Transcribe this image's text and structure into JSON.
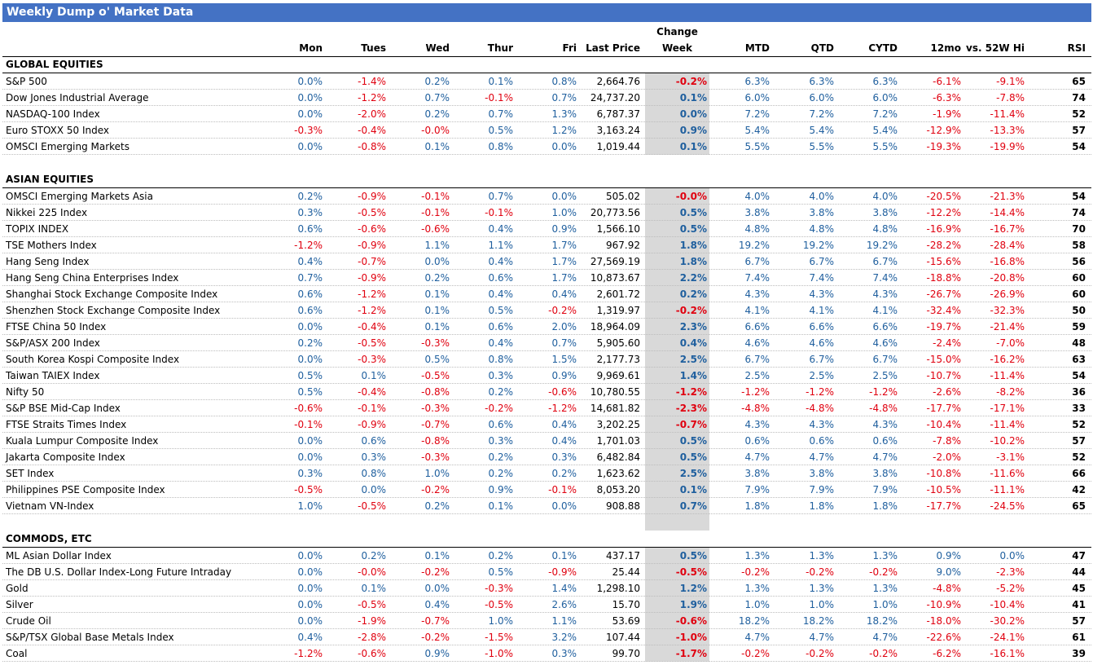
{
  "title": "Weekly Dump o' Market Data",
  "columns": {
    "change_top": "Change",
    "labels": [
      "Mon",
      "Tues",
      "Wed",
      "Thur",
      "Fri",
      "Last Price",
      "Week",
      "MTD",
      "QTD",
      "CYTD",
      "12mo",
      "vs. 52W Hi",
      "RSI"
    ]
  },
  "colors": {
    "header": "#4472c4",
    "positive": "#1f5f9e",
    "negative": "#e0000f",
    "week_bg": "#d9d9d9"
  },
  "sections": [
    {
      "name": "GLOBAL EQUITIES",
      "rows": [
        {
          "name": "S&P 500",
          "mon": "0.0%",
          "tue": "-1.4%",
          "wed": "0.2%",
          "thu": "0.1%",
          "fri": "0.8%",
          "last": "2,664.76",
          "week": "-0.2%",
          "mtd": "6.3%",
          "qtd": "6.3%",
          "cytd": "6.3%",
          "m12": "-6.1%",
          "hi": "-9.1%",
          "rsi": "65"
        },
        {
          "name": "Dow Jones Industrial Average",
          "mon": "0.0%",
          "tue": "-1.2%",
          "wed": "0.7%",
          "thu": "-0.1%",
          "fri": "0.7%",
          "last": "24,737.20",
          "week": "0.1%",
          "mtd": "6.0%",
          "qtd": "6.0%",
          "cytd": "6.0%",
          "m12": "-6.3%",
          "hi": "-7.8%",
          "rsi": "74"
        },
        {
          "name": "NASDAQ-100 Index",
          "mon": "0.0%",
          "tue": "-2.0%",
          "wed": "0.2%",
          "thu": "0.7%",
          "fri": "1.3%",
          "last": "6,787.37",
          "week": "0.0%",
          "mtd": "7.2%",
          "qtd": "7.2%",
          "cytd": "7.2%",
          "m12": "-1.9%",
          "hi": "-11.4%",
          "rsi": "52"
        },
        {
          "name": "Euro STOXX 50 Index",
          "mon": "-0.3%",
          "tue": "-0.4%",
          "wed": "-0.0%",
          "thu": "0.5%",
          "fri": "1.2%",
          "last": "3,163.24",
          "week": "0.9%",
          "mtd": "5.4%",
          "qtd": "5.4%",
          "cytd": "5.4%",
          "m12": "-12.9%",
          "hi": "-13.3%",
          "rsi": "57"
        },
        {
          "name": "OMSCI Emerging Markets",
          "mon": "0.0%",
          "tue": "-0.8%",
          "wed": "0.1%",
          "thu": "0.8%",
          "fri": "0.0%",
          "last": "1,019.44",
          "week": "0.1%",
          "mtd": "5.5%",
          "qtd": "5.5%",
          "cytd": "5.5%",
          "m12": "-19.3%",
          "hi": "-19.9%",
          "rsi": "54"
        }
      ]
    },
    {
      "name": "ASIAN EQUITIES",
      "rows": [
        {
          "name": "OMSCI Emerging Markets Asia",
          "mon": "0.2%",
          "tue": "-0.9%",
          "wed": "-0.1%",
          "thu": "0.7%",
          "fri": "0.0%",
          "last": "505.02",
          "week": "-0.0%",
          "mtd": "4.0%",
          "qtd": "4.0%",
          "cytd": "4.0%",
          "m12": "-20.5%",
          "hi": "-21.3%",
          "rsi": "54"
        },
        {
          "name": "Nikkei 225 Index",
          "mon": "0.3%",
          "tue": "-0.5%",
          "wed": "-0.1%",
          "thu": "-0.1%",
          "fri": "1.0%",
          "last": "20,773.56",
          "week": "0.5%",
          "mtd": "3.8%",
          "qtd": "3.8%",
          "cytd": "3.8%",
          "m12": "-12.2%",
          "hi": "-14.4%",
          "rsi": "74"
        },
        {
          "name": "TOPIX INDEX",
          "mon": "0.6%",
          "tue": "-0.6%",
          "wed": "-0.6%",
          "thu": "0.4%",
          "fri": "0.9%",
          "last": "1,566.10",
          "week": "0.5%",
          "mtd": "4.8%",
          "qtd": "4.8%",
          "cytd": "4.8%",
          "m12": "-16.9%",
          "hi": "-16.7%",
          "rsi": "70"
        },
        {
          "name": "TSE Mothers Index",
          "mon": "-1.2%",
          "tue": "-0.9%",
          "wed": "1.1%",
          "thu": "1.1%",
          "fri": "1.7%",
          "last": "967.92",
          "week": "1.8%",
          "mtd": "19.2%",
          "qtd": "19.2%",
          "cytd": "19.2%",
          "m12": "-28.2%",
          "hi": "-28.4%",
          "rsi": "58"
        },
        {
          "name": "Hang Seng Index",
          "mon": "0.4%",
          "tue": "-0.7%",
          "wed": "0.0%",
          "thu": "0.4%",
          "fri": "1.7%",
          "last": "27,569.19",
          "week": "1.8%",
          "mtd": "6.7%",
          "qtd": "6.7%",
          "cytd": "6.7%",
          "m12": "-15.6%",
          "hi": "-16.8%",
          "rsi": "56"
        },
        {
          "name": "Hang Seng China Enterprises Index",
          "mon": "0.7%",
          "tue": "-0.9%",
          "wed": "0.2%",
          "thu": "0.6%",
          "fri": "1.7%",
          "last": "10,873.67",
          "week": "2.2%",
          "mtd": "7.4%",
          "qtd": "7.4%",
          "cytd": "7.4%",
          "m12": "-18.8%",
          "hi": "-20.8%",
          "rsi": "60"
        },
        {
          "name": "Shanghai Stock Exchange Composite Index",
          "mon": "0.6%",
          "tue": "-1.2%",
          "wed": "0.1%",
          "thu": "0.4%",
          "fri": "0.4%",
          "last": "2,601.72",
          "week": "0.2%",
          "mtd": "4.3%",
          "qtd": "4.3%",
          "cytd": "4.3%",
          "m12": "-26.7%",
          "hi": "-26.9%",
          "rsi": "60"
        },
        {
          "name": "Shenzhen Stock Exchange Composite Index",
          "mon": "0.6%",
          "tue": "-1.2%",
          "wed": "0.1%",
          "thu": "0.5%",
          "fri": "-0.2%",
          "last": "1,319.97",
          "week": "-0.2%",
          "mtd": "4.1%",
          "qtd": "4.1%",
          "cytd": "4.1%",
          "m12": "-32.4%",
          "hi": "-32.3%",
          "rsi": "50"
        },
        {
          "name": "FTSE China 50 Index",
          "mon": "0.0%",
          "tue": "-0.4%",
          "wed": "0.1%",
          "thu": "0.6%",
          "fri": "2.0%",
          "last": "18,964.09",
          "week": "2.3%",
          "mtd": "6.6%",
          "qtd": "6.6%",
          "cytd": "6.6%",
          "m12": "-19.7%",
          "hi": "-21.4%",
          "rsi": "59"
        },
        {
          "name": "S&P/ASX 200 Index",
          "mon": "0.2%",
          "tue": "-0.5%",
          "wed": "-0.3%",
          "thu": "0.4%",
          "fri": "0.7%",
          "last": "5,905.60",
          "week": "0.4%",
          "mtd": "4.6%",
          "qtd": "4.6%",
          "cytd": "4.6%",
          "m12": "-2.4%",
          "hi": "-7.0%",
          "rsi": "48"
        },
        {
          "name": "South Korea Kospi Composite Index",
          "mon": "0.0%",
          "tue": "-0.3%",
          "wed": "0.5%",
          "thu": "0.8%",
          "fri": "1.5%",
          "last": "2,177.73",
          "week": "2.5%",
          "mtd": "6.7%",
          "qtd": "6.7%",
          "cytd": "6.7%",
          "m12": "-15.0%",
          "hi": "-16.2%",
          "rsi": "63"
        },
        {
          "name": "Taiwan TAIEX Index",
          "mon": "0.5%",
          "tue": "0.1%",
          "wed": "-0.5%",
          "thu": "0.3%",
          "fri": "0.9%",
          "last": "9,969.61",
          "week": "1.4%",
          "mtd": "2.5%",
          "qtd": "2.5%",
          "cytd": "2.5%",
          "m12": "-10.7%",
          "hi": "-11.4%",
          "rsi": "54"
        },
        {
          "name": "Nifty 50",
          "mon": "0.5%",
          "tue": "-0.4%",
          "wed": "-0.8%",
          "thu": "0.2%",
          "fri": "-0.6%",
          "last": "10,780.55",
          "week": "-1.2%",
          "mtd": "-1.2%",
          "qtd": "-1.2%",
          "cytd": "-1.2%",
          "m12": "-2.6%",
          "hi": "-8.2%",
          "rsi": "36"
        },
        {
          "name": "S&P BSE Mid-Cap Index",
          "mon": "-0.6%",
          "tue": "-0.1%",
          "wed": "-0.3%",
          "thu": "-0.2%",
          "fri": "-1.2%",
          "last": "14,681.82",
          "week": "-2.3%",
          "mtd": "-4.8%",
          "qtd": "-4.8%",
          "cytd": "-4.8%",
          "m12": "-17.7%",
          "hi": "-17.1%",
          "rsi": "33"
        },
        {
          "name": "FTSE Straits Times Index",
          "mon": "-0.1%",
          "tue": "-0.9%",
          "wed": "-0.7%",
          "thu": "0.6%",
          "fri": "0.4%",
          "last": "3,202.25",
          "week": "-0.7%",
          "mtd": "4.3%",
          "qtd": "4.3%",
          "cytd": "4.3%",
          "m12": "-10.4%",
          "hi": "-11.4%",
          "rsi": "52"
        },
        {
          "name": "Kuala Lumpur Composite Index",
          "mon": "0.0%",
          "tue": "0.6%",
          "wed": "-0.8%",
          "thu": "0.3%",
          "fri": "0.4%",
          "last": "1,701.03",
          "week": "0.5%",
          "mtd": "0.6%",
          "qtd": "0.6%",
          "cytd": "0.6%",
          "m12": "-7.8%",
          "hi": "-10.2%",
          "rsi": "57"
        },
        {
          "name": "Jakarta Composite Index",
          "mon": "0.0%",
          "tue": "0.3%",
          "wed": "-0.3%",
          "thu": "0.2%",
          "fri": "0.3%",
          "last": "6,482.84",
          "week": "0.5%",
          "mtd": "4.7%",
          "qtd": "4.7%",
          "cytd": "4.7%",
          "m12": "-2.0%",
          "hi": "-3.1%",
          "rsi": "52"
        },
        {
          "name": "SET Index",
          "mon": "0.3%",
          "tue": "0.8%",
          "wed": "1.0%",
          "thu": "0.2%",
          "fri": "0.2%",
          "last": "1,623.62",
          "week": "2.5%",
          "mtd": "3.8%",
          "qtd": "3.8%",
          "cytd": "3.8%",
          "m12": "-10.8%",
          "hi": "-11.6%",
          "rsi": "66"
        },
        {
          "name": "Philippines PSE Composite Index",
          "mon": "-0.5%",
          "tue": "0.0%",
          "wed": "-0.2%",
          "thu": "0.9%",
          "fri": "-0.1%",
          "last": "8,053.20",
          "week": "0.1%",
          "mtd": "7.9%",
          "qtd": "7.9%",
          "cytd": "7.9%",
          "m12": "-10.5%",
          "hi": "-11.1%",
          "rsi": "42"
        },
        {
          "name": "Vietnam VN-Index",
          "mon": "1.0%",
          "tue": "-0.5%",
          "wed": "0.2%",
          "thu": "0.1%",
          "fri": "0.0%",
          "last": "908.88",
          "week": "0.7%",
          "mtd": "1.8%",
          "qtd": "1.8%",
          "cytd": "1.8%",
          "m12": "-17.7%",
          "hi": "-24.5%",
          "rsi": "65"
        }
      ]
    },
    {
      "name": "COMMODS, ETC",
      "rows": [
        {
          "name": "ML Asian Dollar Index",
          "mon": "0.0%",
          "tue": "0.2%",
          "wed": "0.1%",
          "thu": "0.2%",
          "fri": "0.1%",
          "last": "437.17",
          "week": "0.5%",
          "mtd": "1.3%",
          "qtd": "1.3%",
          "cytd": "1.3%",
          "m12": "0.9%",
          "hi": "0.0%",
          "rsi": "47"
        },
        {
          "name": "The DB U.S. Dollar Index-Long Future Intraday",
          "mon": "0.0%",
          "tue": "-0.0%",
          "wed": "-0.2%",
          "thu": "0.5%",
          "fri": "-0.9%",
          "last": "25.44",
          "week": "-0.5%",
          "mtd": "-0.2%",
          "qtd": "-0.2%",
          "cytd": "-0.2%",
          "m12": "9.0%",
          "hi": "-2.3%",
          "rsi": "44"
        },
        {
          "name": "Gold",
          "mon": "0.0%",
          "tue": "0.1%",
          "wed": "0.0%",
          "thu": "-0.3%",
          "fri": "1.4%",
          "last": "1,298.10",
          "week": "1.2%",
          "mtd": "1.3%",
          "qtd": "1.3%",
          "cytd": "1.3%",
          "m12": "-4.8%",
          "hi": "-5.2%",
          "rsi": "45"
        },
        {
          "name": "Silver",
          "mon": "0.0%",
          "tue": "-0.5%",
          "wed": "0.4%",
          "thu": "-0.5%",
          "fri": "2.6%",
          "last": "15.70",
          "week": "1.9%",
          "mtd": "1.0%",
          "qtd": "1.0%",
          "cytd": "1.0%",
          "m12": "-10.9%",
          "hi": "-10.4%",
          "rsi": "41"
        },
        {
          "name": "Crude Oil",
          "mon": "0.0%",
          "tue": "-1.9%",
          "wed": "-0.7%",
          "thu": "1.0%",
          "fri": "1.1%",
          "last": "53.69",
          "week": "-0.6%",
          "mtd": "18.2%",
          "qtd": "18.2%",
          "cytd": "18.2%",
          "m12": "-18.0%",
          "hi": "-30.2%",
          "rsi": "57"
        },
        {
          "name": "S&P/TSX Global Base Metals Index",
          "mon": "0.4%",
          "tue": "-2.8%",
          "wed": "-0.2%",
          "thu": "-1.5%",
          "fri": "3.2%",
          "last": "107.44",
          "week": "-1.0%",
          "mtd": "4.7%",
          "qtd": "4.7%",
          "cytd": "4.7%",
          "m12": "-22.6%",
          "hi": "-24.1%",
          "rsi": "61"
        },
        {
          "name": "Coal",
          "mon": "-1.2%",
          "tue": "-0.6%",
          "wed": "0.9%",
          "thu": "-1.0%",
          "fri": "0.3%",
          "last": "99.70",
          "week": "-1.7%",
          "mtd": "-0.2%",
          "qtd": "-0.2%",
          "cytd": "-0.2%",
          "m12": "-6.2%",
          "hi": "-16.1%",
          "rsi": "39"
        }
      ]
    }
  ]
}
